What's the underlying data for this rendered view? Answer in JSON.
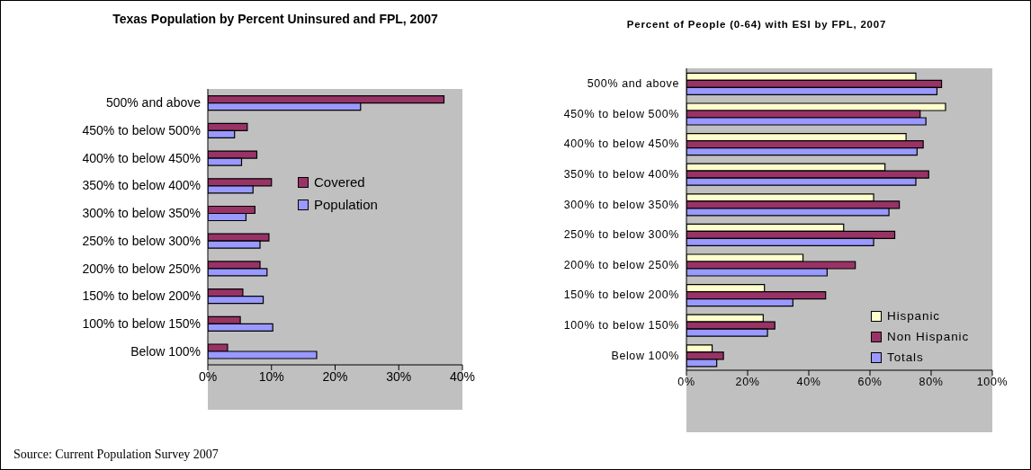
{
  "chart_data": [
    {
      "type": "bar",
      "orientation": "horizontal",
      "title": "Texas Population by Percent Uninsured and FPL, 2007",
      "categories": [
        "500% and above",
        "450% to below 500%",
        "400% to below 450%",
        "350% to below 400%",
        "300% to below 350%",
        "250% to below 300%",
        "200% to below 250%",
        "150% to below 200%",
        "100% to below 150%",
        "Below 100%"
      ],
      "series": [
        {
          "name": "Covered",
          "color": "#993366",
          "values": [
            37.1,
            6.2,
            7.7,
            10.0,
            7.4,
            9.6,
            8.2,
            5.5,
            5.1,
            3.1
          ]
        },
        {
          "name": "Population",
          "color": "#9999ff",
          "values": [
            24.0,
            4.2,
            5.3,
            7.1,
            6.0,
            8.2,
            9.3,
            8.7,
            10.2,
            17.1
          ]
        }
      ],
      "xlim": [
        0,
        40
      ],
      "xticks": [
        {
          "value": 0,
          "label": "0%"
        },
        {
          "value": 10,
          "label": "10%"
        },
        {
          "value": 20,
          "label": "20%"
        },
        {
          "value": 30,
          "label": "30%"
        },
        {
          "value": 40,
          "label": "40%"
        }
      ],
      "legend": "right",
      "grid": false,
      "annotations": [
        "Source: Current Population Survey 2007"
      ]
    },
    {
      "type": "bar",
      "orientation": "horizontal",
      "title": "Percent of People (0-64) with ESI by FPL, 2007",
      "categories": [
        "500% and above",
        "450% to below 500%",
        "400% to below 450%",
        "350% to below 400%",
        "300% to below 350%",
        "250% to below 300%",
        "200% to below 250%",
        "150% to below 200%",
        "100% to below 150%",
        "Below 100%"
      ],
      "series": [
        {
          "name": "Hispanic",
          "color": "#ffffcc",
          "values": [
            75.0,
            84.7,
            71.8,
            64.9,
            61.2,
            51.4,
            38.1,
            25.5,
            25.1,
            8.4
          ]
        },
        {
          "name": "Non Hispanic",
          "color": "#993366",
          "values": [
            83.4,
            76.4,
            77.4,
            79.2,
            69.6,
            68.1,
            55.2,
            45.5,
            28.9,
            12.1
          ]
        },
        {
          "name": "Totals",
          "color": "#9999ff",
          "values": [
            81.9,
            78.3,
            75.4,
            75.0,
            66.2,
            61.2,
            46.0,
            34.8,
            26.5,
            9.9
          ]
        }
      ],
      "xlim": [
        0,
        100
      ],
      "xticks": [
        {
          "value": 0,
          "label": "0%"
        },
        {
          "value": 20,
          "label": "20%"
        },
        {
          "value": 40,
          "label": "40%"
        },
        {
          "value": 60,
          "label": "60%"
        },
        {
          "value": 80,
          "label": "80%"
        },
        {
          "value": 100,
          "label": "100%"
        }
      ],
      "legend": "bottom right",
      "grid": false
    }
  ]
}
